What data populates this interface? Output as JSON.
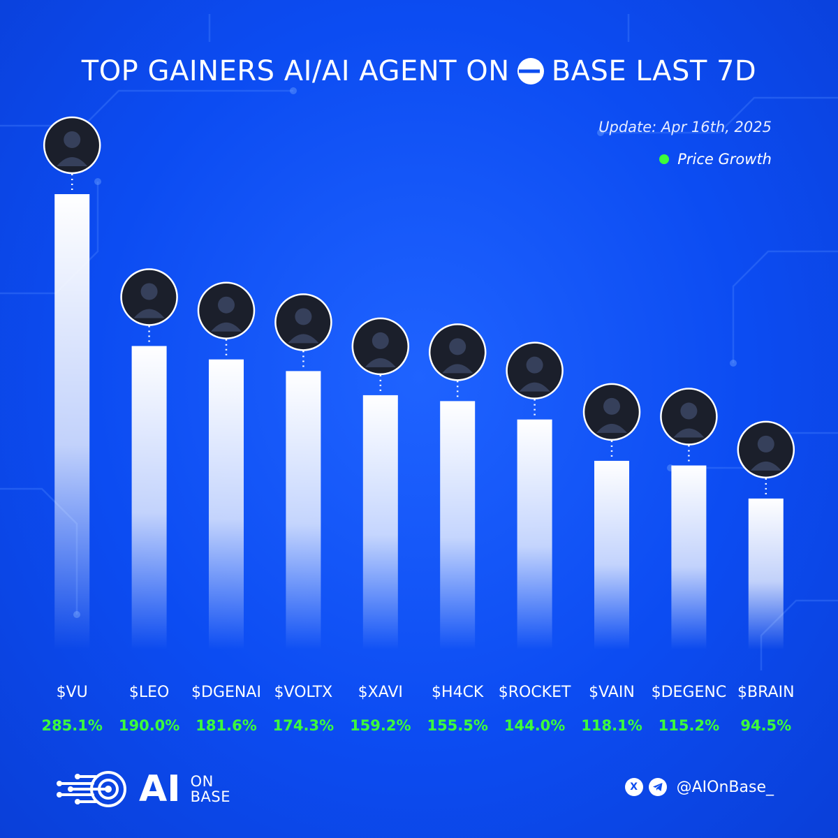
{
  "header": {
    "title_prefix": "TOP GAINERS AI/AI AGENT ON",
    "title_suffix": "BASE LAST 7D",
    "update": "Update: Apr 16th, 2025",
    "legend": "Price Growth"
  },
  "colors": {
    "background": "#0d4df0",
    "bar": "#ffffff",
    "value": "#3dff3a"
  },
  "chart_data": {
    "type": "bar",
    "categories": [
      "$VU",
      "$LEO",
      "$DGENAI",
      "$VOLTX",
      "$XAVI",
      "$H4CK",
      "$ROCKET",
      "$VAIN",
      "$DEGENC",
      "$BRAIN"
    ],
    "values": [
      285.1,
      190.0,
      181.6,
      174.3,
      159.2,
      155.5,
      144.0,
      118.1,
      115.2,
      94.5
    ],
    "value_labels": [
      "285.1%",
      "190.0%",
      "181.6%",
      "174.3%",
      "159.2%",
      "155.5%",
      "144.0%",
      "118.1%",
      "115.2%",
      "94.5%"
    ],
    "icons": [
      "unicorn-avatar-icon",
      "lion-logo-icon",
      "pepe-frog-avatar-icon",
      "candlestick-logo-icon",
      "hooded-hacker-avatar-icon",
      "h4ck-laptop-icon",
      "raccoon-coder-avatar-icon",
      "robot-face-avatar-icon",
      "gold-degen-avatar-icon",
      "brain-bars-logo-icon"
    ],
    "series": [
      {
        "name": "Price Growth",
        "values": [
          285.1,
          190.0,
          181.6,
          174.3,
          159.2,
          155.5,
          144.0,
          118.1,
          115.2,
          94.5
        ]
      }
    ],
    "legend": "top-right",
    "grid": false
  },
  "footer": {
    "brand_ai": "AI",
    "brand_on": "ON",
    "brand_base": "BASE",
    "handle": "@AIOnBase_"
  }
}
